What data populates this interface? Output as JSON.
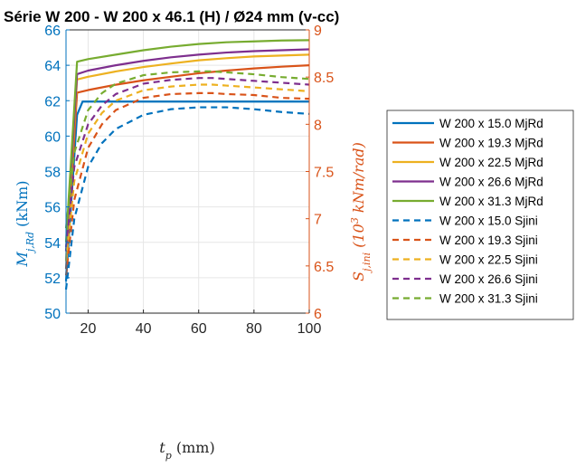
{
  "chart_data": {
    "type": "line",
    "title": "Série W 200  - W 200 x 46.1 (H) / Ø24 mm (v-cc)",
    "xlabel": "t_p (mm)",
    "ylabel_left": "M_j,Rd (kNm)",
    "ylabel_right": "S_j,ini (10^3 kNm/rad)",
    "xlim": [
      12,
      100
    ],
    "ylim_left": [
      50,
      66
    ],
    "ylim_right": [
      6,
      9
    ],
    "xticks": [
      "20",
      "40",
      "60",
      "80",
      "100"
    ],
    "yticks_left": [
      "50",
      "52",
      "54",
      "56",
      "58",
      "60",
      "62",
      "64",
      "66"
    ],
    "yticks_right": [
      "6",
      "6.5",
      "7",
      "7.5",
      "8",
      "8.5",
      "9"
    ],
    "grid": true,
    "legend_position": "outside-right",
    "left_axis_color": "#0072BD",
    "right_axis_color": "#D95319",
    "series": [
      {
        "name": "W 200 x 15.0 MjRd",
        "axis": "left",
        "color": "#0072BD",
        "style": "solid",
        "x": [
          12,
          16,
          18,
          20,
          30,
          40,
          50,
          60,
          70,
          80,
          90,
          100
        ],
        "y": [
          51.8,
          61.2,
          61.95,
          61.95,
          61.95,
          61.95,
          61.95,
          61.95,
          61.95,
          61.95,
          61.95,
          61.95
        ]
      },
      {
        "name": "W 200 x 19.3 MjRd",
        "axis": "left",
        "color": "#D95319",
        "style": "solid",
        "x": [
          12,
          16,
          20,
          30,
          40,
          50,
          60,
          70,
          80,
          90,
          100
        ],
        "y": [
          52.5,
          62.45,
          62.6,
          62.9,
          63.15,
          63.35,
          63.55,
          63.7,
          63.82,
          63.92,
          64.0
        ]
      },
      {
        "name": "W 200 x 22.5 MjRd",
        "axis": "left",
        "color": "#EDB120",
        "style": "solid",
        "x": [
          12,
          16,
          20,
          30,
          40,
          50,
          60,
          70,
          80,
          90,
          100
        ],
        "y": [
          53.0,
          63.2,
          63.35,
          63.65,
          63.9,
          64.1,
          64.28,
          64.4,
          64.5,
          64.55,
          64.6
        ]
      },
      {
        "name": "W 200 x 26.6 MjRd",
        "axis": "left",
        "color": "#7E2F8E",
        "style": "solid",
        "x": [
          12,
          16,
          20,
          30,
          40,
          50,
          60,
          70,
          80,
          90,
          100
        ],
        "y": [
          53.5,
          63.5,
          63.7,
          64.0,
          64.25,
          64.45,
          64.6,
          64.72,
          64.8,
          64.85,
          64.9
        ]
      },
      {
        "name": "W 200 x 31.3 MjRd",
        "axis": "left",
        "color": "#77AC30",
        "style": "solid",
        "x": [
          12,
          16,
          20,
          30,
          40,
          50,
          60,
          70,
          80,
          90,
          100
        ],
        "y": [
          54.0,
          64.2,
          64.35,
          64.6,
          64.85,
          65.05,
          65.2,
          65.3,
          65.35,
          65.4,
          65.42
        ]
      },
      {
        "name": "W 200 x 15.0 Sjini",
        "axis": "right",
        "color": "#0072BD",
        "style": "dashed",
        "x": [
          12,
          15,
          20,
          25,
          30,
          40,
          50,
          60,
          65,
          70,
          80,
          90,
          100
        ],
        "y": [
          6.25,
          7.0,
          7.55,
          7.8,
          7.95,
          8.1,
          8.16,
          8.18,
          8.18,
          8.18,
          8.16,
          8.13,
          8.11
        ]
      },
      {
        "name": "W 200 x 19.3 Sjini",
        "axis": "right",
        "color": "#D95319",
        "style": "dashed",
        "x": [
          12,
          15,
          20,
          25,
          30,
          40,
          50,
          60,
          65,
          70,
          80,
          90,
          100
        ],
        "y": [
          6.4,
          7.2,
          7.75,
          8.0,
          8.15,
          8.28,
          8.32,
          8.33,
          8.33,
          8.32,
          8.31,
          8.28,
          8.27
        ]
      },
      {
        "name": "W 200 x 22.5 Sjini",
        "axis": "right",
        "color": "#EDB120",
        "style": "dashed",
        "x": [
          12,
          15,
          20,
          25,
          30,
          40,
          50,
          60,
          65,
          70,
          80,
          90,
          100
        ],
        "y": [
          6.55,
          7.4,
          7.9,
          8.12,
          8.25,
          8.36,
          8.4,
          8.42,
          8.42,
          8.41,
          8.39,
          8.37,
          8.35
        ]
      },
      {
        "name": "W 200 x 26.6 Sjini",
        "axis": "right",
        "color": "#7E2F8E",
        "style": "dashed",
        "x": [
          12,
          15,
          20,
          25,
          30,
          40,
          50,
          60,
          65,
          70,
          80,
          90,
          100
        ],
        "y": [
          6.7,
          7.55,
          8.0,
          8.2,
          8.32,
          8.43,
          8.47,
          8.49,
          8.49,
          8.48,
          8.46,
          8.44,
          8.42
        ]
      },
      {
        "name": "W 200 x 31.3 Sjini",
        "axis": "right",
        "color": "#77AC30",
        "style": "dashed",
        "x": [
          12,
          15,
          20,
          25,
          30,
          40,
          50,
          60,
          65,
          70,
          80,
          90,
          100
        ],
        "y": [
          6.9,
          7.7,
          8.15,
          8.33,
          8.43,
          8.52,
          8.55,
          8.56,
          8.56,
          8.55,
          8.53,
          8.5,
          8.48
        ]
      }
    ]
  }
}
